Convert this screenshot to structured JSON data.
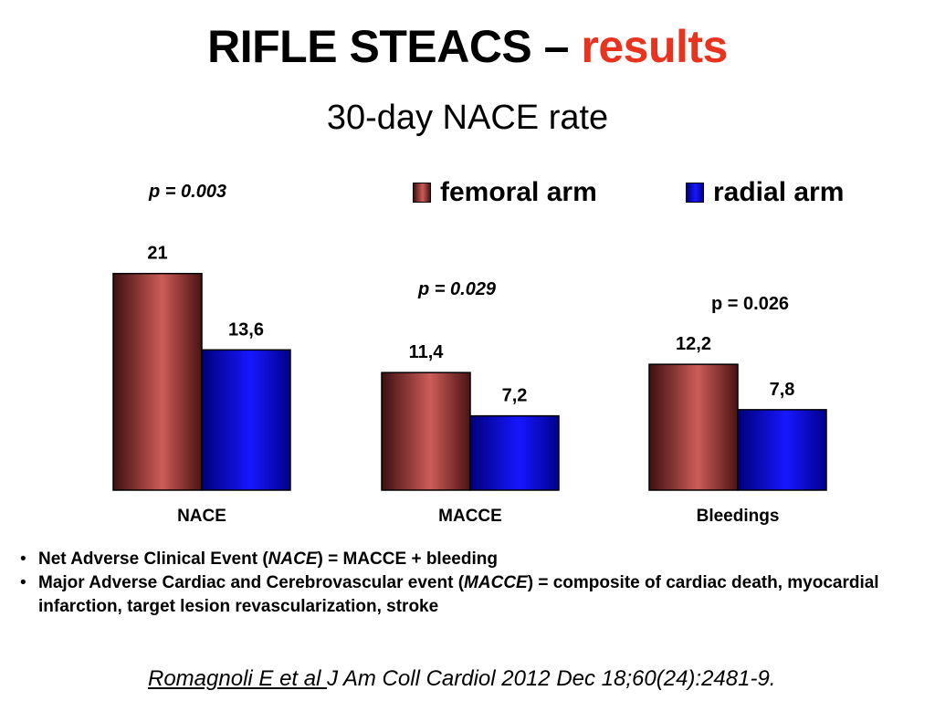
{
  "title": {
    "main": "RIFLE STEACS – ",
    "accent": "results"
  },
  "subtitle": "30-day NACE rate",
  "legend": {
    "femoral": {
      "label": "femoral arm",
      "color": "#c0504d"
    },
    "radial": {
      "label": "radial arm",
      "color": "#0000ff"
    }
  },
  "p_values": {
    "nace": "p = 0.003",
    "macce": "p = 0.029",
    "bleedings": "p = 0.026"
  },
  "notes": {
    "bullet": "•",
    "nace_def": {
      "prefix": "Net Adverse Clinical Event (",
      "term": "NACE",
      "suffix": ") = MACCE + bleeding"
    },
    "macce_def": {
      "prefix": "Major Adverse Cardiac and Cerebrovascular event (",
      "term": "MACCE",
      "suffix": ") = composite of cardiac death, myocardial infarction, target lesion revascularization, stroke"
    }
  },
  "citation": {
    "author": "Romagnoli E et al ",
    "reference": " J Am Coll Cardiol 2012 Dec 18;60(24):2481-9."
  },
  "chart_data": {
    "type": "bar",
    "categories": [
      "NACE",
      "MACCE",
      "Bleedings"
    ],
    "series": [
      {
        "name": "femoral arm",
        "values": [
          21,
          11.4,
          12.2
        ],
        "labels": [
          "21",
          "11,4",
          "12,2"
        ],
        "color": "#c0504d"
      },
      {
        "name": "radial arm",
        "values": [
          13.6,
          7.2,
          7.8
        ],
        "labels": [
          "13,6",
          "7,2",
          "7,8"
        ],
        "color": "#0000ff"
      }
    ],
    "title": "30-day NACE rate",
    "xlabel": "",
    "ylabel": "",
    "ylim": [
      0,
      21
    ],
    "grid": false,
    "legend": "top-right"
  }
}
